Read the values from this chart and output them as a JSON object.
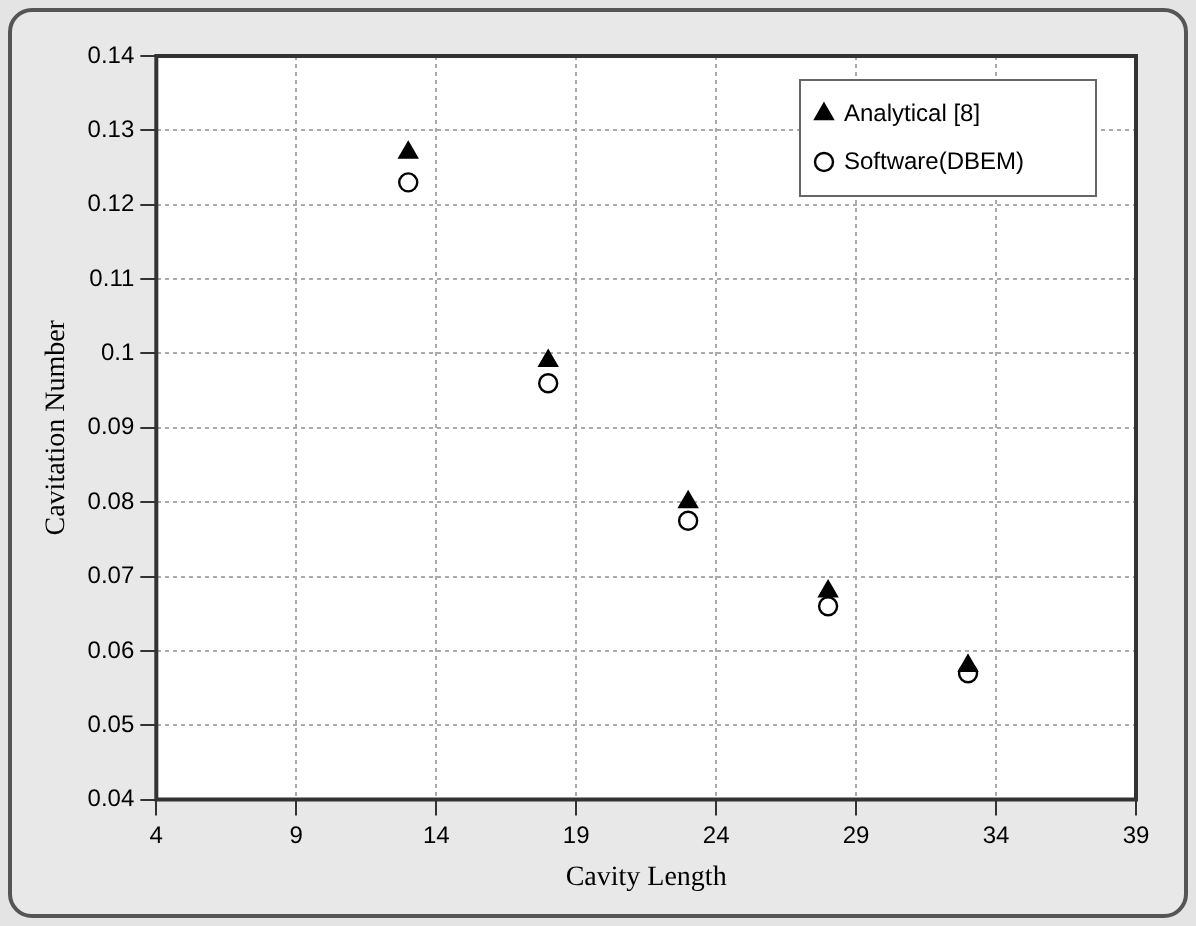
{
  "chart_data": {
    "type": "scatter",
    "xlabel": "Cavity Length",
    "ylabel": "Cavitation Number",
    "xlim": [
      4,
      39
    ],
    "xticks": [
      4,
      9,
      14,
      19,
      24,
      29,
      34,
      39
    ],
    "ylim": [
      0.04,
      0.14
    ],
    "yticks": [
      0.04,
      0.05,
      0.06,
      0.07,
      0.08,
      0.09,
      0.1,
      0.11,
      0.12,
      0.13,
      0.14
    ],
    "grid": true,
    "legend": "top right",
    "series": [
      {
        "name": "Analytical [8]",
        "color": "#000000",
        "marker": "triangle",
        "x": [
          13,
          18,
          23,
          28,
          33
        ],
        "values": [
          0.127,
          0.099,
          0.08,
          0.068,
          0.058
        ]
      },
      {
        "name": "Software(DBEM)",
        "color": "#000000",
        "marker": "circle",
        "x": [
          13,
          18,
          23,
          28,
          33
        ],
        "values": [
          0.123,
          0.096,
          0.0775,
          0.066,
          0.057
        ]
      }
    ]
  }
}
